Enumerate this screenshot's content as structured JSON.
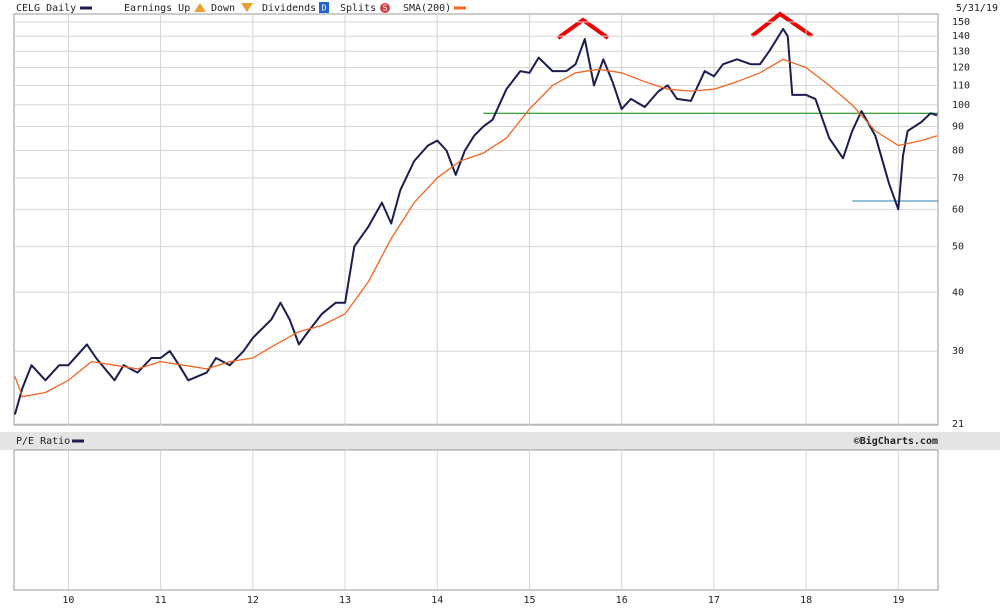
{
  "header": {
    "symbol": "CELG Daily",
    "earnings_up": "Earnings Up",
    "earnings_down": "Down",
    "dividends": "Dividends",
    "dividend_icon": "D",
    "splits": "Splits",
    "split_icon": "S",
    "sma": "SMA(200)",
    "date": "5/31/19"
  },
  "chart_data": {
    "type": "line",
    "log_y": true,
    "grid": true,
    "xlim": [
      9.41,
      19.43
    ],
    "xticks": [
      {
        "value": 10,
        "label": "10"
      },
      {
        "value": 11,
        "label": "11"
      },
      {
        "value": 12,
        "label": "12"
      },
      {
        "value": 13,
        "label": "13"
      },
      {
        "value": 14,
        "label": "14"
      },
      {
        "value": 15,
        "label": "15"
      },
      {
        "value": 16,
        "label": "16"
      },
      {
        "value": 17,
        "label": "17"
      },
      {
        "value": 18,
        "label": "18"
      },
      {
        "value": 19,
        "label": "19"
      }
    ],
    "ylim": [
      21,
      150
    ],
    "yticks": [
      21,
      30,
      40,
      50,
      60,
      70,
      80,
      90,
      100,
      110,
      120,
      130,
      140,
      150
    ],
    "series": [
      {
        "name": "CELG Daily",
        "color": "#1c1c50",
        "x": [
          9.42,
          9.5,
          9.6,
          9.75,
          9.9,
          10.0,
          10.2,
          10.3,
          10.5,
          10.6,
          10.75,
          10.9,
          11.0,
          11.1,
          11.2,
          11.3,
          11.5,
          11.6,
          11.75,
          11.9,
          12.0,
          12.2,
          12.3,
          12.4,
          12.5,
          12.6,
          12.75,
          12.9,
          13.0,
          13.1,
          13.25,
          13.4,
          13.5,
          13.6,
          13.75,
          13.9,
          14.0,
          14.1,
          14.2,
          14.3,
          14.4,
          14.5,
          14.6,
          14.75,
          14.9,
          15.0,
          15.1,
          15.25,
          15.4,
          15.5,
          15.6,
          15.7,
          15.8,
          15.9,
          16.0,
          16.1,
          16.25,
          16.4,
          16.5,
          16.6,
          16.75,
          16.9,
          17.0,
          17.1,
          17.25,
          17.4,
          17.5,
          17.6,
          17.75,
          17.8,
          17.85,
          18.0,
          18.1,
          18.25,
          18.4,
          18.5,
          18.6,
          18.75,
          18.9,
          19.0,
          19.05,
          19.1,
          19.25,
          19.35,
          19.42
        ],
        "values": [
          22,
          25,
          28,
          26,
          28,
          28,
          31,
          29,
          26,
          28,
          27,
          29,
          29,
          30,
          28,
          26,
          27,
          29,
          28,
          30,
          32,
          35,
          38,
          35,
          31,
          33,
          36,
          38,
          38,
          50,
          55,
          62,
          56,
          66,
          76,
          82,
          84,
          80,
          71,
          80,
          86,
          90,
          93,
          108,
          118,
          117,
          126,
          118,
          118,
          122,
          138,
          110,
          125,
          112,
          98,
          103,
          99,
          107,
          110,
          103,
          102,
          118,
          115,
          122,
          125,
          122,
          122,
          130,
          145,
          140,
          105,
          105,
          103,
          85,
          77,
          88,
          97,
          86,
          68,
          60,
          78,
          88,
          92,
          96,
          95
        ]
      },
      {
        "name": "SMA(200)",
        "color": "#f26522",
        "x": [
          9.42,
          9.5,
          9.75,
          10.0,
          10.25,
          10.5,
          10.75,
          11.0,
          11.25,
          11.5,
          11.75,
          12.0,
          12.25,
          12.5,
          12.75,
          13.0,
          13.25,
          13.5,
          13.75,
          14.0,
          14.25,
          14.5,
          14.75,
          15.0,
          15.25,
          15.5,
          15.75,
          16.0,
          16.25,
          16.5,
          16.75,
          17.0,
          17.25,
          17.5,
          17.75,
          18.0,
          18.25,
          18.5,
          18.75,
          19.0,
          19.25,
          19.42
        ],
        "values": [
          26.5,
          24,
          24.5,
          26,
          28.5,
          28,
          27.5,
          28.5,
          28,
          27.5,
          28.5,
          29,
          31,
          33,
          34,
          36,
          42,
          52,
          62,
          70,
          76,
          79,
          85,
          98,
          110,
          117,
          119,
          117,
          112,
          108,
          107,
          108,
          112,
          117,
          125,
          120,
          110,
          100,
          88,
          82,
          84,
          86
        ]
      }
    ],
    "levels": [
      {
        "y": 96,
        "x": [
          14.5,
          19.43
        ],
        "color": "#008000"
      },
      {
        "y": 62.5,
        "x": [
          18.5,
          19.43
        ],
        "color": "#2a7fb0"
      }
    ]
  },
  "pe_panel": {
    "title": "P/E Ratio",
    "credit": "©BigCharts.com"
  }
}
